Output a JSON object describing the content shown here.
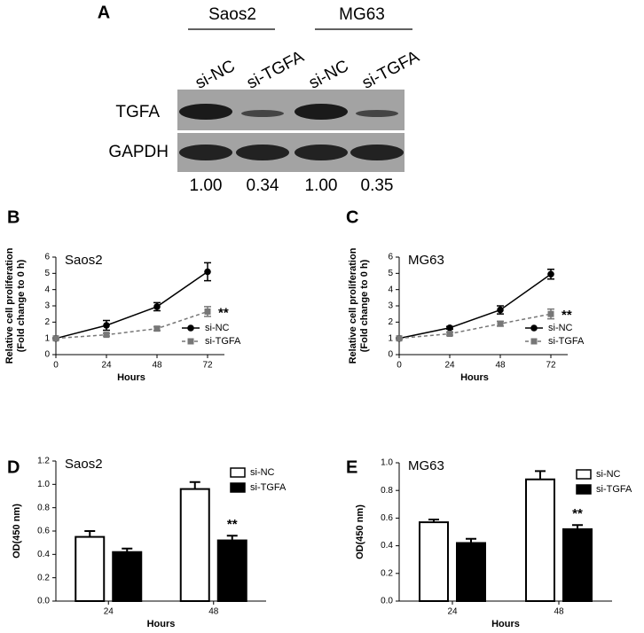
{
  "blot": {
    "panel_label": "A",
    "groups": [
      "Saos2",
      "MG63"
    ],
    "lanes": [
      "si-NC",
      "si-TGFA",
      "si-NC",
      "si-TGFA"
    ],
    "rows": [
      "TGFA",
      "GAPDH"
    ],
    "quantification": [
      "1.00",
      "0.34",
      "1.00",
      "0.35"
    ]
  },
  "chart_data": [
    {
      "type": "line",
      "panel_label": "B",
      "title": "Saos2",
      "ylabel": [
        "Relative cell proliferation",
        "(Fold change to 0 h)"
      ],
      "xlabel": "Hours",
      "x": [
        0,
        24,
        48,
        72
      ],
      "xlim": [
        0,
        80
      ],
      "xticks": [
        0,
        24,
        48,
        72
      ],
      "ylim": [
        0,
        6
      ],
      "yticks": [
        0,
        1,
        2,
        3,
        4,
        5,
        6
      ],
      "series": [
        {
          "name": "si-NC",
          "color": "#000000",
          "line_style": "solid",
          "marker": "circle",
          "values": [
            1,
            1.8,
            2.95,
            5.1
          ],
          "errors": [
            0.05,
            0.3,
            0.25,
            0.55
          ]
        },
        {
          "name": "si-TGFA",
          "color": "#777777",
          "line_style": "dashed",
          "marker": "square",
          "values": [
            1,
            1.22,
            1.6,
            2.65
          ],
          "errors": [
            0.05,
            0.08,
            0.12,
            0.3
          ]
        }
      ],
      "annotation": "**",
      "legend": "lower right"
    },
    {
      "type": "line",
      "panel_label": "C",
      "title": "MG63",
      "ylabel": [
        "Relative cell proliferation",
        "(Fold change to 0 h)"
      ],
      "xlabel": "Hours",
      "x": [
        0,
        24,
        48,
        72
      ],
      "xlim": [
        0,
        80
      ],
      "xticks": [
        0,
        24,
        48,
        72
      ],
      "ylim": [
        0,
        6
      ],
      "yticks": [
        0,
        1,
        2,
        3,
        4,
        5,
        6
      ],
      "series": [
        {
          "name": "si-NC",
          "color": "#000000",
          "line_style": "solid",
          "marker": "circle",
          "values": [
            1,
            1.65,
            2.75,
            4.95
          ],
          "errors": [
            0.05,
            0.08,
            0.25,
            0.3
          ]
        },
        {
          "name": "si-TGFA",
          "color": "#777777",
          "line_style": "dashed",
          "marker": "square",
          "values": [
            1,
            1.28,
            1.9,
            2.5
          ],
          "errors": [
            0.05,
            0.08,
            0.15,
            0.3
          ]
        }
      ],
      "annotation": "**",
      "legend": "lower right"
    },
    {
      "type": "bar",
      "panel_label": "D",
      "title": "Saos2",
      "ylabel": "OD(450 nm)",
      "xlabel": "Hours",
      "categories": [
        "24",
        "48"
      ],
      "ylim": [
        0,
        1.2
      ],
      "yticks": [
        {
          "value": 0,
          "label": "0.0"
        },
        0.2,
        0.4,
        0.6,
        0.8,
        {
          "value": 1,
          "label": "1.0"
        },
        1.2
      ],
      "series": [
        {
          "name": "si-NC",
          "color": "#ffffff",
          "values": [
            0.55,
            0.96
          ],
          "errors": [
            0.05,
            0.06
          ]
        },
        {
          "name": "si-TGFA",
          "color": "#000000",
          "values": [
            0.42,
            0.52
          ],
          "errors": [
            0.03,
            0.04
          ]
        }
      ],
      "annotation": "**",
      "legend": "upper right"
    },
    {
      "type": "bar",
      "panel_label": "E",
      "title": "MG63",
      "ylabel": "OD(450 nm)",
      "xlabel": "Hours",
      "categories": [
        "24",
        "48"
      ],
      "ylim": [
        0,
        1
      ],
      "yticks": [
        {
          "value": 0,
          "label": "0.0"
        },
        0.2,
        0.4,
        0.6,
        0.8,
        {
          "value": 1,
          "label": "1.0"
        }
      ],
      "series": [
        {
          "name": "si-NC",
          "color": "#ffffff",
          "values": [
            0.57,
            0.88
          ],
          "errors": [
            0.02,
            0.06
          ]
        },
        {
          "name": "si-TGFA",
          "color": "#000000",
          "values": [
            0.42,
            0.52
          ],
          "errors": [
            0.03,
            0.03
          ]
        }
      ],
      "annotation": "**",
      "legend": "upper right"
    }
  ]
}
